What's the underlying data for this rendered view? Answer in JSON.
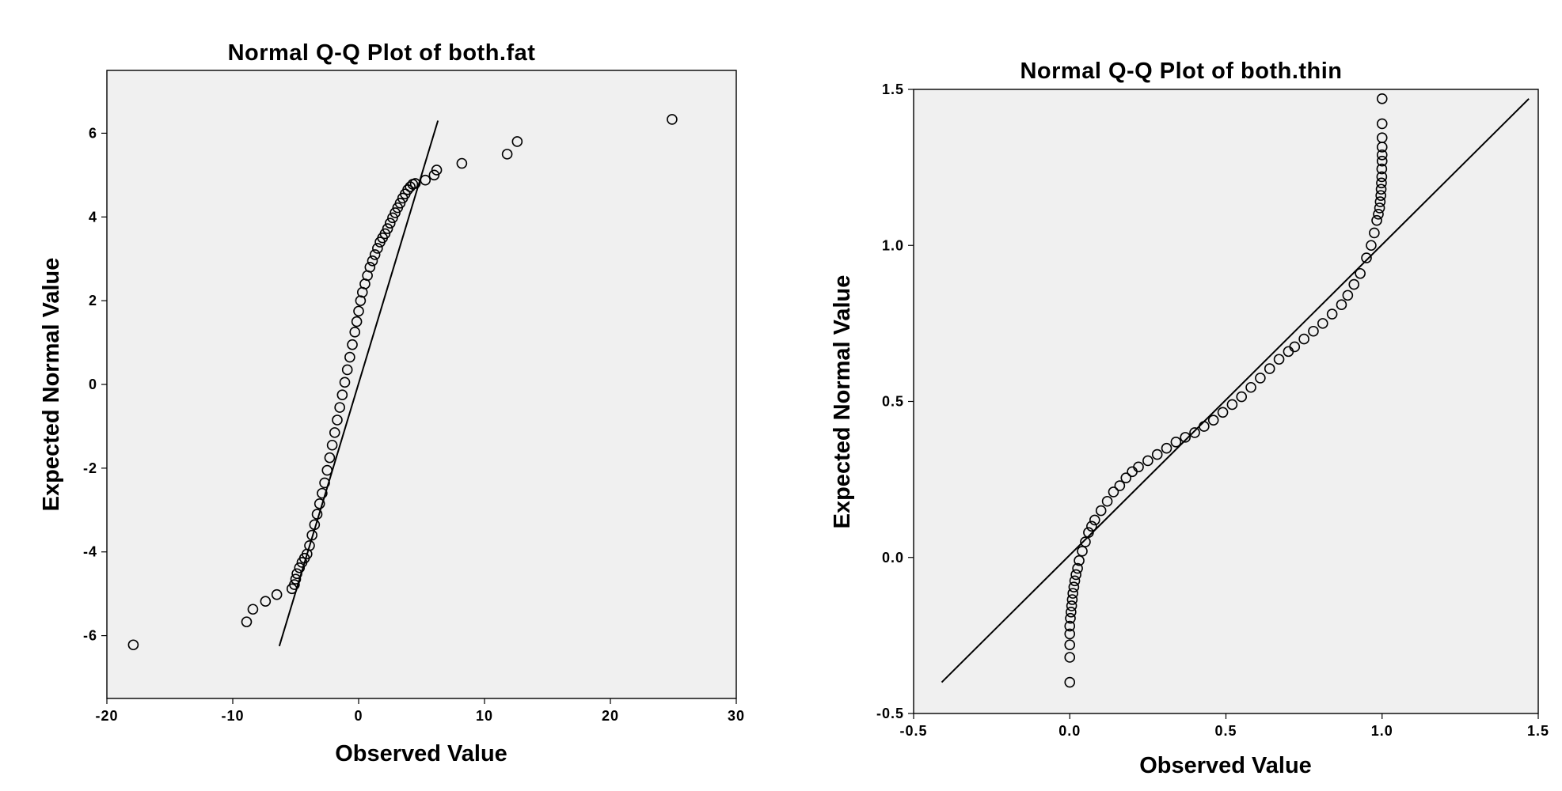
{
  "chart_data": [
    {
      "type": "scatter",
      "title": "Normal Q-Q Plot of both.fat",
      "xlabel": "Observed Value",
      "ylabel": "Expected Normal Value",
      "xlim": [
        -20,
        30
      ],
      "ylim": [
        -7.5,
        7.5
      ],
      "xticks": [
        -20,
        -10,
        0,
        10,
        20,
        30
      ],
      "yticks": [
        -6,
        -4,
        -2,
        0,
        2,
        4,
        6
      ],
      "xtick_labels": [
        "-20",
        "-10",
        "0",
        "10",
        "20",
        "30"
      ],
      "ytick_labels": [
        "-6",
        "-4",
        "-2",
        "0",
        "2",
        "4",
        "6"
      ],
      "grid": false,
      "reference_line": [
        [
          -6.3,
          -6.25
        ],
        [
          6.3,
          6.3
        ]
      ],
      "points": {
        "x": [
          -17.9,
          -8.9,
          -8.4,
          -7.4,
          -6.5,
          -5.3,
          -5.1,
          -5.0,
          -4.9,
          -4.7,
          -4.5,
          -4.3,
          -4.1,
          -3.9,
          -3.7,
          -3.5,
          -3.3,
          -3.1,
          -2.9,
          -2.7,
          -2.5,
          -2.3,
          -2.1,
          -1.9,
          -1.7,
          -1.5,
          -1.3,
          -1.1,
          -0.9,
          -0.7,
          -0.5,
          -0.3,
          -0.15,
          0.0,
          0.15,
          0.3,
          0.5,
          0.7,
          0.9,
          1.1,
          1.3,
          1.5,
          1.7,
          1.9,
          2.1,
          2.3,
          2.5,
          2.7,
          2.9,
          3.1,
          3.3,
          3.5,
          3.7,
          3.9,
          4.1,
          4.3,
          4.5,
          5.3,
          6.0,
          6.2,
          8.2,
          11.8,
          12.6,
          24.9
        ],
        "y": [
          -6.22,
          -5.67,
          -5.37,
          -5.18,
          -5.02,
          -4.88,
          -4.78,
          -4.65,
          -4.52,
          -4.38,
          -4.25,
          -4.15,
          -4.05,
          -3.85,
          -3.6,
          -3.35,
          -3.1,
          -2.85,
          -2.6,
          -2.35,
          -2.05,
          -1.75,
          -1.45,
          -1.15,
          -0.85,
          -0.55,
          -0.25,
          0.05,
          0.35,
          0.65,
          0.95,
          1.25,
          1.5,
          1.75,
          2.0,
          2.2,
          2.4,
          2.6,
          2.8,
          2.95,
          3.1,
          3.25,
          3.4,
          3.5,
          3.6,
          3.72,
          3.85,
          3.98,
          4.1,
          4.22,
          4.33,
          4.45,
          4.55,
          4.65,
          4.72,
          4.78,
          4.8,
          4.88,
          5.0,
          5.12,
          5.28,
          5.5,
          5.8,
          6.33
        ]
      }
    },
    {
      "type": "scatter",
      "title": "Normal Q-Q Plot of both.thin",
      "xlabel": "Observed Value",
      "ylabel": "Expected Normal Value",
      "xlim": [
        -0.5,
        1.5
      ],
      "ylim": [
        -0.5,
        1.5
      ],
      "xticks": [
        -0.5,
        0.0,
        0.5,
        1.0,
        1.5
      ],
      "yticks": [
        -0.5,
        0.0,
        0.5,
        1.0,
        1.5
      ],
      "xtick_labels": [
        "-0.5",
        "0.0",
        "0.5",
        "1.0",
        "1.5"
      ],
      "ytick_labels": [
        "-0.5",
        "0.0",
        "0.5",
        "1.0",
        "1.5"
      ],
      "grid": false,
      "reference_line": [
        [
          -0.41,
          -0.4
        ],
        [
          1.47,
          1.47
        ]
      ],
      "points": {
        "x": [
          0.0,
          0.0,
          0.0,
          0.0,
          0.0,
          0.002,
          0.004,
          0.006,
          0.008,
          0.01,
          0.013,
          0.016,
          0.02,
          0.025,
          0.03,
          0.04,
          0.05,
          0.06,
          0.07,
          0.08,
          0.1,
          0.12,
          0.14,
          0.16,
          0.18,
          0.2,
          0.22,
          0.25,
          0.28,
          0.31,
          0.34,
          0.37,
          0.4,
          0.43,
          0.46,
          0.49,
          0.52,
          0.55,
          0.58,
          0.61,
          0.64,
          0.67,
          0.7,
          0.72,
          0.75,
          0.78,
          0.81,
          0.84,
          0.87,
          0.89,
          0.91,
          0.93,
          0.95,
          0.965,
          0.975,
          0.983,
          0.988,
          0.992,
          0.994,
          0.996,
          0.997,
          0.998,
          0.999,
          0.999,
          1.0,
          1.0,
          1.0,
          1.0,
          1.0,
          1.0
        ],
        "y": [
          -0.4,
          -0.32,
          -0.28,
          -0.245,
          -0.22,
          -0.195,
          -0.175,
          -0.155,
          -0.135,
          -0.115,
          -0.095,
          -0.075,
          -0.055,
          -0.035,
          -0.01,
          0.02,
          0.05,
          0.08,
          0.1,
          0.12,
          0.15,
          0.18,
          0.21,
          0.23,
          0.255,
          0.275,
          0.29,
          0.31,
          0.33,
          0.35,
          0.37,
          0.385,
          0.4,
          0.42,
          0.44,
          0.465,
          0.49,
          0.515,
          0.545,
          0.575,
          0.605,
          0.635,
          0.66,
          0.675,
          0.7,
          0.725,
          0.75,
          0.78,
          0.81,
          0.84,
          0.875,
          0.91,
          0.96,
          1.0,
          1.04,
          1.08,
          1.1,
          1.12,
          1.14,
          1.16,
          1.18,
          1.2,
          1.22,
          1.245,
          1.27,
          1.29,
          1.315,
          1.345,
          1.39,
          1.47
        ]
      }
    }
  ]
}
